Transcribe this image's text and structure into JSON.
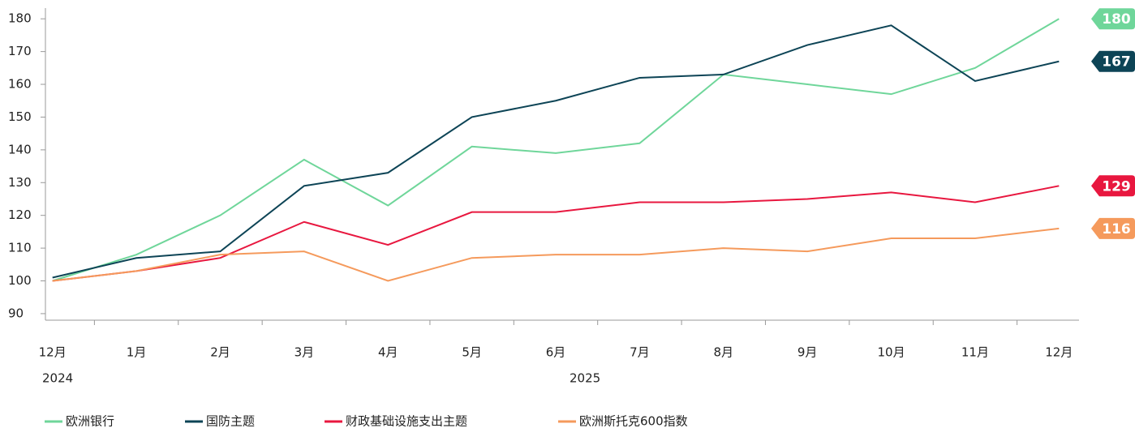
{
  "chart_data": {
    "type": "line",
    "categories": [
      "12月",
      "1月",
      "2月",
      "3月",
      "4月",
      "5月",
      "6月",
      "7月",
      "8月",
      "9月",
      "10月",
      "11月",
      "12月"
    ],
    "year_labels": [
      "2024",
      "2025"
    ],
    "series": [
      {
        "name": "欧洲银行",
        "color": "#6fd69a",
        "values": [
          100,
          108,
          120,
          137,
          123,
          141,
          139,
          142,
          163,
          160,
          157,
          165,
          180
        ]
      },
      {
        "name": "国防主题",
        "color": "#0d4456",
        "values": [
          101,
          107,
          109,
          129,
          133,
          150,
          155,
          162,
          163,
          172,
          178,
          161,
          167
        ]
      },
      {
        "name": "财政基础设施支出主题",
        "color": "#e8173f",
        "values": [
          100,
          103,
          107,
          118,
          111,
          121,
          121,
          124,
          124,
          125,
          127,
          124,
          129
        ]
      },
      {
        "name": "欧洲斯托克600指数",
        "color": "#f59a5c",
        "values": [
          100,
          103,
          108,
          109,
          100,
          107,
          108,
          108,
          110,
          109,
          113,
          113,
          116
        ]
      }
    ],
    "ylim": [
      88,
      185
    ],
    "yticks": [
      90,
      100,
      110,
      120,
      130,
      140,
      150,
      160,
      170,
      180
    ]
  }
}
